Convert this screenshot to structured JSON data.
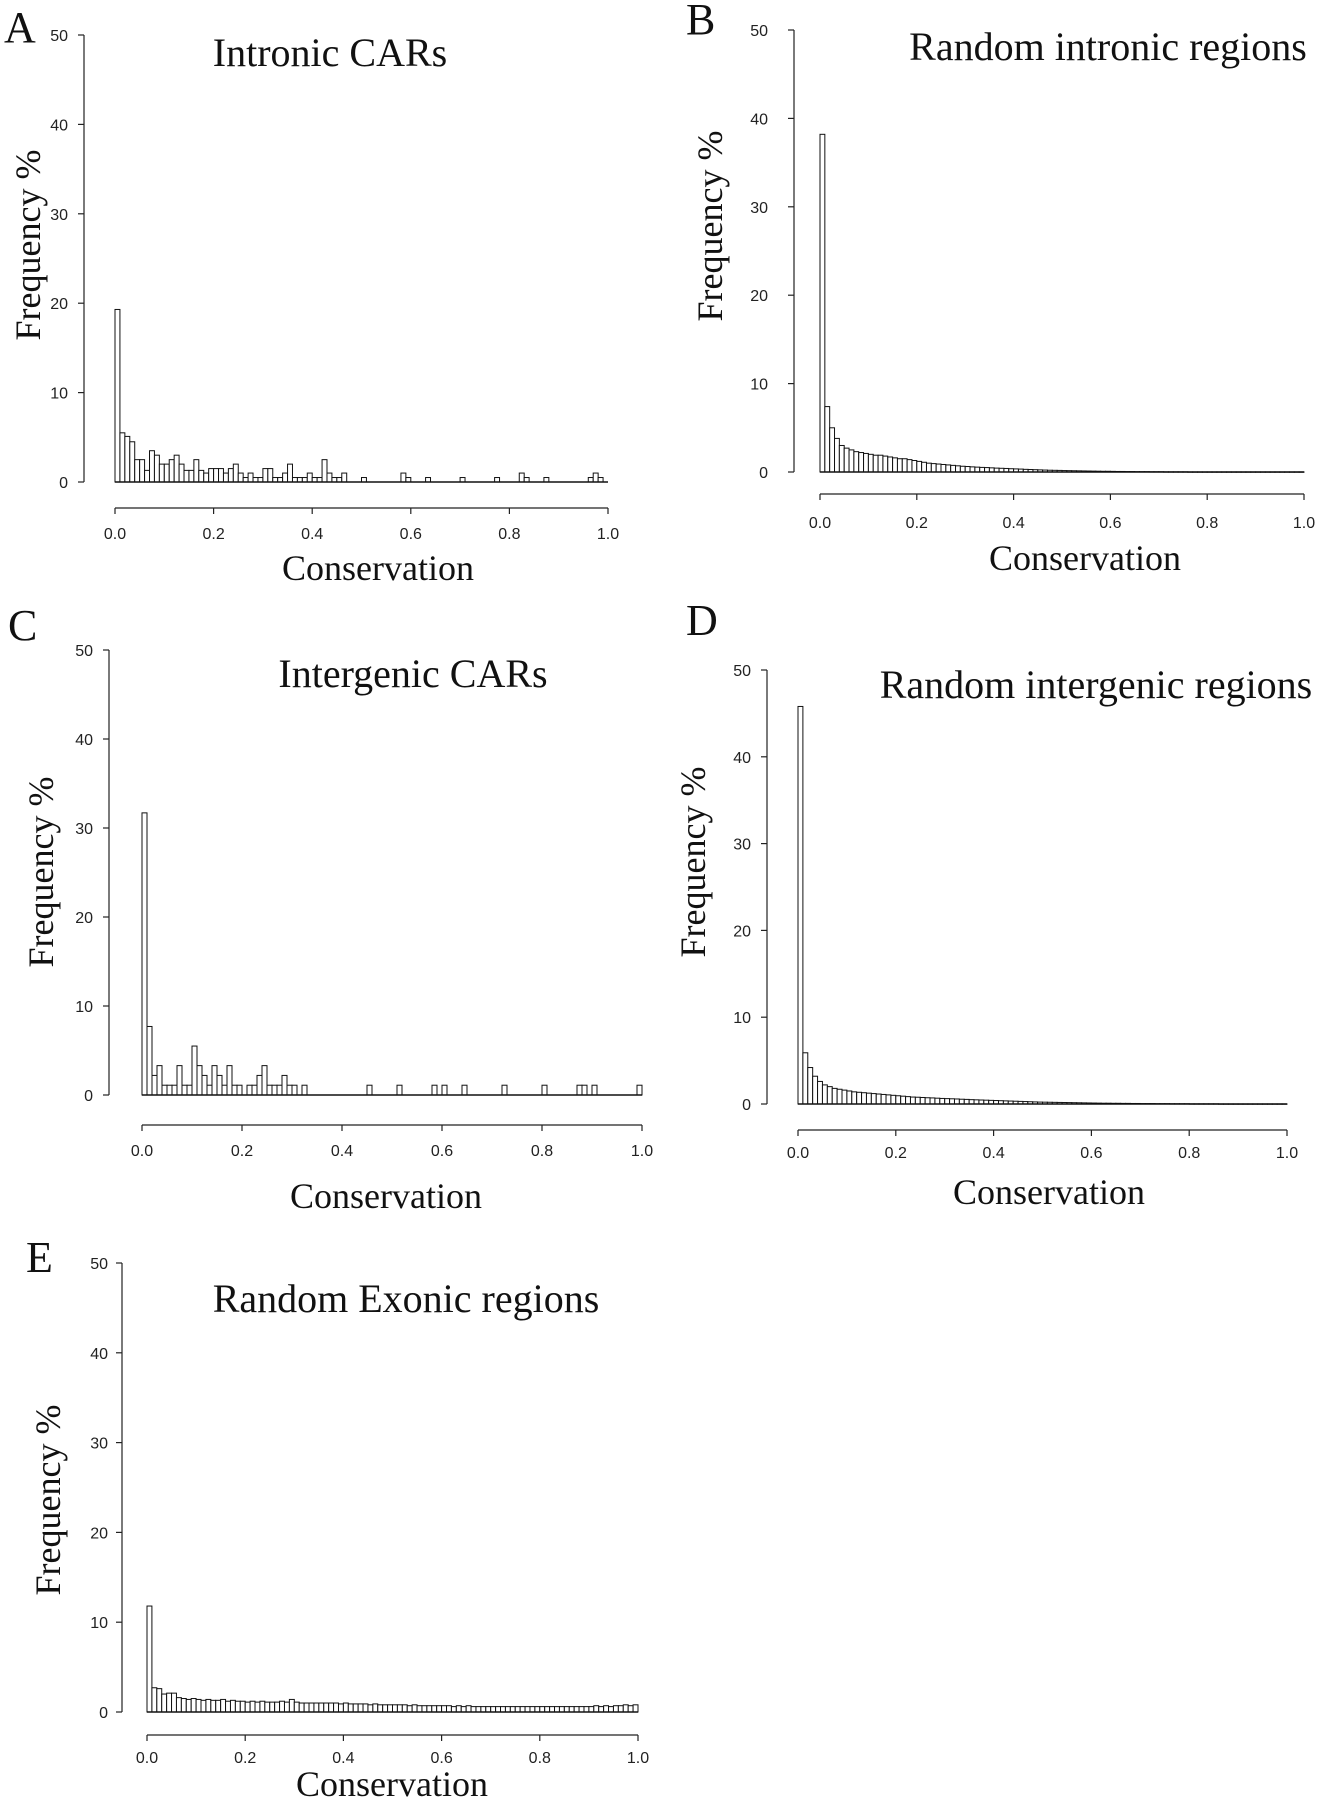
{
  "chart_data": [
    {
      "panel": "A",
      "type": "bar",
      "title": "Intronic CARs",
      "xlabel": "Conservation",
      "ylabel": "Frequency %",
      "xlim": [
        0,
        1
      ],
      "ylim": [
        0,
        50
      ],
      "xticks": [
        "0.0",
        "0.2",
        "0.4",
        "0.6",
        "0.8",
        "1.0"
      ],
      "yticks": [
        "0",
        "10",
        "20",
        "30",
        "40",
        "50"
      ],
      "bin_width": 0.01,
      "values": [
        19.3,
        5.5,
        5.1,
        4.5,
        2.5,
        2.5,
        1.3,
        3.5,
        3.0,
        2.0,
        2.0,
        2.5,
        3.0,
        2.0,
        1.3,
        1.3,
        2.5,
        1.3,
        1.0,
        1.5,
        1.5,
        1.5,
        1.0,
        1.5,
        2.0,
        1.0,
        0.5,
        1.0,
        0.5,
        0.5,
        1.5,
        1.5,
        0.5,
        0.5,
        1.0,
        2.0,
        0.5,
        0.5,
        0.5,
        1.0,
        0.5,
        0.5,
        2.5,
        1.0,
        0.5,
        0.5,
        1.0,
        0,
        0,
        0,
        0.5,
        0,
        0,
        0,
        0,
        0,
        0,
        0,
        1.0,
        0.5,
        0,
        0,
        0,
        0.5,
        0,
        0,
        0,
        0,
        0,
        0,
        0.5,
        0,
        0,
        0,
        0,
        0,
        0,
        0.5,
        0,
        0,
        0,
        0,
        1.0,
        0.5,
        0,
        0,
        0,
        0.5,
        0,
        0,
        0,
        0,
        0,
        0,
        0,
        0,
        0.5,
        1.0,
        0.5,
        0
      ]
    },
    {
      "panel": "B",
      "type": "bar",
      "title": "Random intronic regions",
      "xlabel": "Conservation",
      "ylabel": "Frequency %",
      "xlim": [
        0,
        1
      ],
      "ylim": [
        0,
        50
      ],
      "xticks": [
        "0.0",
        "0.2",
        "0.4",
        "0.6",
        "0.8",
        "1.0"
      ],
      "yticks": [
        "0",
        "10",
        "20",
        "30",
        "40",
        "50"
      ],
      "bin_width": 0.01,
      "values": [
        38.2,
        7.4,
        5.0,
        3.8,
        3.0,
        2.7,
        2.5,
        2.3,
        2.2,
        2.1,
        2.0,
        1.9,
        1.9,
        1.8,
        1.7,
        1.6,
        1.5,
        1.5,
        1.4,
        1.3,
        1.2,
        1.1,
        1.0,
        0.95,
        0.9,
        0.85,
        0.8,
        0.75,
        0.7,
        0.65,
        0.62,
        0.58,
        0.55,
        0.52,
        0.5,
        0.47,
        0.44,
        0.42,
        0.4,
        0.37,
        0.35,
        0.33,
        0.3,
        0.28,
        0.26,
        0.24,
        0.22,
        0.2,
        0.19,
        0.18,
        0.16,
        0.15,
        0.14,
        0.13,
        0.12,
        0.11,
        0.1,
        0.09,
        0.08,
        0.08,
        0.07,
        0.06,
        0.06,
        0.05,
        0.05,
        0.04,
        0.04,
        0.04,
        0.03,
        0.03,
        0.03,
        0.02,
        0.02,
        0.02,
        0.02,
        0.02,
        0.01,
        0.01,
        0.01,
        0.01,
        0.01,
        0.01,
        0.01,
        0.01,
        0.01,
        0.01,
        0.01,
        0.01,
        0.01,
        0.01,
        0.01,
        0.01,
        0.01,
        0.01,
        0.01,
        0.01,
        0.01,
        0.01,
        0.01,
        0.01
      ]
    },
    {
      "panel": "C",
      "type": "bar",
      "title": "Intergenic CARs",
      "xlabel": "Conservation",
      "ylabel": "Frequency %",
      "xlim": [
        0,
        1
      ],
      "ylim": [
        0,
        50
      ],
      "xticks": [
        "0.0",
        "0.2",
        "0.4",
        "0.6",
        "0.8",
        "1.0"
      ],
      "yticks": [
        "0",
        "10",
        "20",
        "30",
        "40",
        "50"
      ],
      "bin_width": 0.01,
      "values": [
        31.7,
        7.7,
        2.2,
        3.3,
        1.1,
        1.1,
        1.1,
        3.3,
        1.1,
        1.1,
        5.5,
        3.3,
        2.2,
        1.1,
        3.3,
        2.2,
        1.1,
        3.3,
        1.1,
        1.1,
        0,
        1.1,
        1.1,
        2.2,
        3.3,
        1.1,
        1.1,
        1.1,
        2.2,
        1.1,
        1.1,
        0,
        1.1,
        0,
        0,
        0,
        0,
        0,
        0,
        0,
        0,
        0,
        0,
        0,
        0,
        1.1,
        0,
        0,
        0,
        0,
        0,
        1.1,
        0,
        0,
        0,
        0,
        0,
        0,
        1.1,
        0,
        1.1,
        0,
        0,
        0,
        1.1,
        0,
        0,
        0,
        0,
        0,
        0,
        0,
        1.1,
        0,
        0,
        0,
        0,
        0,
        0,
        0,
        1.1,
        0,
        0,
        0,
        0,
        0,
        0,
        1.1,
        1.1,
        0,
        1.1,
        0,
        0,
        0,
        0,
        0,
        0,
        0,
        0,
        1.1
      ]
    },
    {
      "panel": "D",
      "type": "bar",
      "title": "Random intergenic regions",
      "xlabel": "Conservation",
      "ylabel": "Frequency %",
      "xlim": [
        0,
        1
      ],
      "ylim": [
        0,
        50
      ],
      "xticks": [
        "0.0",
        "0.2",
        "0.4",
        "0.6",
        "0.8",
        "1.0"
      ],
      "yticks": [
        "0",
        "10",
        "20",
        "30",
        "40",
        "50"
      ],
      "bin_width": 0.01,
      "values": [
        45.8,
        5.9,
        4.2,
        3.2,
        2.6,
        2.2,
        2.0,
        1.8,
        1.7,
        1.6,
        1.5,
        1.4,
        1.35,
        1.3,
        1.25,
        1.2,
        1.15,
        1.1,
        1.05,
        1.0,
        0.95,
        0.9,
        0.85,
        0.8,
        0.78,
        0.75,
        0.72,
        0.7,
        0.67,
        0.64,
        0.62,
        0.6,
        0.58,
        0.55,
        0.53,
        0.5,
        0.48,
        0.46,
        0.44,
        0.42,
        0.4,
        0.38,
        0.36,
        0.34,
        0.32,
        0.3,
        0.28,
        0.26,
        0.24,
        0.22,
        0.21,
        0.2,
        0.19,
        0.18,
        0.17,
        0.16,
        0.15,
        0.14,
        0.13,
        0.12,
        0.11,
        0.1,
        0.09,
        0.09,
        0.08,
        0.08,
        0.07,
        0.07,
        0.06,
        0.06,
        0.05,
        0.05,
        0.05,
        0.04,
        0.04,
        0.04,
        0.03,
        0.03,
        0.03,
        0.03,
        0.02,
        0.02,
        0.02,
        0.02,
        0.02,
        0.02,
        0.01,
        0.01,
        0.01,
        0.01,
        0.01,
        0.01,
        0.01,
        0.01,
        0.01,
        0.01,
        0.01,
        0.01,
        0.01,
        0.01
      ]
    },
    {
      "panel": "E",
      "type": "bar",
      "title": "Random Exonic regions",
      "xlabel": "Conservation",
      "ylabel": "Frequency %",
      "xlim": [
        0,
        1
      ],
      "ylim": [
        0,
        50
      ],
      "xticks": [
        "0.0",
        "0.2",
        "0.4",
        "0.6",
        "0.8",
        "1.0"
      ],
      "yticks": [
        "0",
        "10",
        "20",
        "30",
        "40",
        "50"
      ],
      "bin_width": 0.01,
      "values": [
        11.8,
        2.7,
        2.6,
        2.0,
        2.1,
        2.1,
        1.6,
        1.5,
        1.4,
        1.5,
        1.4,
        1.3,
        1.4,
        1.3,
        1.3,
        1.4,
        1.2,
        1.3,
        1.2,
        1.2,
        1.1,
        1.2,
        1.1,
        1.2,
        1.1,
        1.1,
        1.1,
        1.2,
        1.1,
        1.4,
        1.1,
        1.0,
        1.0,
        1.0,
        1.0,
        1.0,
        1.0,
        1.0,
        1.0,
        0.9,
        1.0,
        0.9,
        0.9,
        0.9,
        0.9,
        0.8,
        0.9,
        0.8,
        0.8,
        0.8,
        0.8,
        0.8,
        0.8,
        0.7,
        0.8,
        0.7,
        0.7,
        0.7,
        0.7,
        0.7,
        0.7,
        0.7,
        0.6,
        0.7,
        0.6,
        0.7,
        0.6,
        0.6,
        0.6,
        0.6,
        0.6,
        0.6,
        0.6,
        0.6,
        0.6,
        0.6,
        0.6,
        0.6,
        0.6,
        0.6,
        0.6,
        0.6,
        0.6,
        0.6,
        0.6,
        0.6,
        0.6,
        0.6,
        0.6,
        0.6,
        0.6,
        0.7,
        0.6,
        0.7,
        0.6,
        0.7,
        0.7,
        0.8,
        0.7,
        0.8
      ]
    }
  ]
}
